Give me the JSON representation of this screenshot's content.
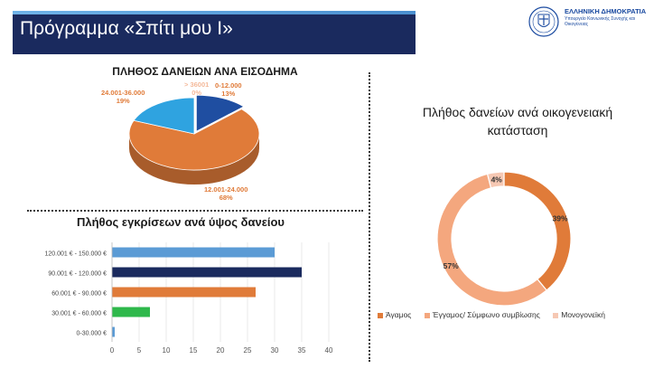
{
  "header": {
    "title": "Πρόγραμμα «Σπίτι μου Ι»",
    "gov_name": "ΕΛΛΗΝΙΚΗ ΔΗΜΟΚΡΑΤΙΑ",
    "gov_sub": "Υπουργείο Κοινωνικής Συνοχής και Οικογένειας"
  },
  "chart_data": [
    {
      "type": "pie",
      "title": "ΠΛΗΘΟΣ ΔΑΝΕΙΩΝ ΑΝΑ ΕΙΣΟΔΗΜΑ",
      "slices": [
        {
          "label": "0-12.000",
          "percent_label": "13%",
          "value": 13,
          "color": "#1f4ea1"
        },
        {
          "label": "12.001-24.000",
          "percent_label": "68%",
          "value": 68,
          "color": "#e07b39"
        },
        {
          "label": "24.001-36.000",
          "percent_label": "19%",
          "value": 19,
          "color": "#2fa3e0"
        },
        {
          "label": "> 36001",
          "percent_label": "0%",
          "value": 0,
          "color": "#f4b99a"
        }
      ]
    },
    {
      "type": "bar",
      "orientation": "horizontal",
      "title": "Πλήθος εγκρίσεων ανά ύψος δανείου",
      "categories": [
        "120.001 € - 150.000 €",
        "90.001 € - 120.000 €",
        "60.001 € - 90.000 €",
        "30.001 € - 60.000 €",
        "0-30.000 €"
      ],
      "values": [
        30,
        35,
        26.5,
        7,
        0.5
      ],
      "colors": [
        "#5b9bd5",
        "#1a2a5e",
        "#e07b39",
        "#2eb84b",
        "#5b9bd5"
      ],
      "xlim": [
        0,
        40
      ],
      "xticks": [
        "0",
        "5",
        "10",
        "15",
        "20",
        "25",
        "30",
        "35",
        "40"
      ],
      "grid": true
    },
    {
      "type": "pie",
      "donut": true,
      "title": "Πλήθος δανείων ανά οικογενειακή κατάσταση",
      "slices": [
        {
          "label": "Άγαμος",
          "percent_label": "39%",
          "value": 39,
          "color": "#e07b39"
        },
        {
          "label": "Έγγαμος/ Σύμφωνο συμβίωσης",
          "percent_label": "57%",
          "value": 57,
          "color": "#f4a77e"
        },
        {
          "label": "Μονογονεϊκή",
          "percent_label": "4%",
          "value": 4,
          "color": "#f6c8b3"
        }
      ],
      "legend": "bottom"
    }
  ]
}
